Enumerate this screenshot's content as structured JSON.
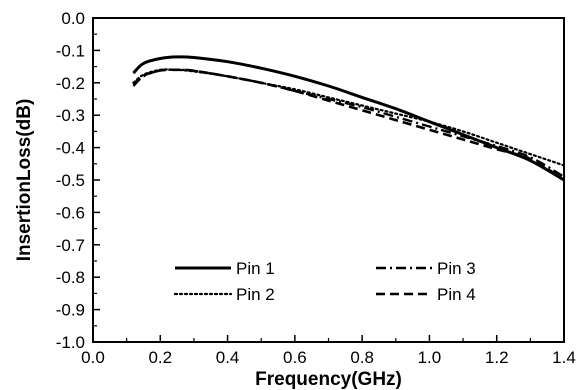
{
  "chart_data": {
    "type": "line",
    "xlabel": "Frequency(GHz)",
    "ylabel": "InsertionLoss(dB)",
    "xlim": [
      0.0,
      1.4
    ],
    "ylim": [
      -1.0,
      0.0
    ],
    "x_ticks": [
      0.0,
      0.2,
      0.4,
      0.6,
      0.8,
      1.0,
      1.2,
      1.4
    ],
    "x_tick_labels": [
      "0.0",
      "0.2",
      "0.4",
      "0.6",
      "0.8",
      "1.0",
      "1.2",
      "1.4"
    ],
    "y_ticks": [
      0.0,
      -0.1,
      -0.2,
      -0.3,
      -0.4,
      -0.5,
      -0.6,
      -0.7,
      -0.8,
      -0.9,
      -1.0
    ],
    "y_tick_labels": [
      "0.0",
      "-0.1",
      "-0.2",
      "-0.3",
      "-0.4",
      "-0.5",
      "-0.6",
      "-0.7",
      "-0.8",
      "-0.9",
      "-1.0"
    ],
    "grid": false,
    "legend_position": "lower-center",
    "series": [
      {
        "name": "Pin 1",
        "style": "solid",
        "color": "#000000",
        "x": [
          0.12,
          0.15,
          0.2,
          0.25,
          0.3,
          0.4,
          0.5,
          0.6,
          0.7,
          0.8,
          0.9,
          1.0,
          1.1,
          1.2,
          1.3,
          1.4
        ],
        "y": [
          -0.17,
          -0.14,
          -0.125,
          -0.12,
          -0.122,
          -0.135,
          -0.155,
          -0.18,
          -0.21,
          -0.245,
          -0.28,
          -0.32,
          -0.36,
          -0.4,
          -0.44,
          -0.5
        ]
      },
      {
        "name": "Pin 2",
        "style": "dotted",
        "color": "#000000",
        "x": [
          0.12,
          0.15,
          0.2,
          0.25,
          0.3,
          0.4,
          0.5,
          0.6,
          0.7,
          0.8,
          0.9,
          1.0,
          1.1,
          1.2,
          1.3,
          1.4
        ],
        "y": [
          -0.2,
          -0.175,
          -0.16,
          -0.16,
          -0.165,
          -0.18,
          -0.2,
          -0.22,
          -0.245,
          -0.27,
          -0.295,
          -0.32,
          -0.35,
          -0.385,
          -0.42,
          -0.455
        ]
      },
      {
        "name": "Pin 3",
        "style": "dashdot",
        "color": "#000000",
        "x": [
          0.12,
          0.15,
          0.2,
          0.25,
          0.3,
          0.4,
          0.5,
          0.6,
          0.7,
          0.8,
          0.9,
          1.0,
          1.1,
          1.2,
          1.3,
          1.4
        ],
        "y": [
          -0.21,
          -0.18,
          -0.162,
          -0.16,
          -0.163,
          -0.18,
          -0.2,
          -0.225,
          -0.25,
          -0.275,
          -0.305,
          -0.335,
          -0.365,
          -0.395,
          -0.43,
          -0.49
        ]
      },
      {
        "name": "Pin 4",
        "style": "dashed",
        "color": "#000000",
        "x": [
          0.12,
          0.15,
          0.2,
          0.25,
          0.3,
          0.4,
          0.5,
          0.6,
          0.7,
          0.8,
          0.9,
          1.0,
          1.1,
          1.2,
          1.3,
          1.4
        ],
        "y": [
          -0.205,
          -0.178,
          -0.162,
          -0.16,
          -0.163,
          -0.18,
          -0.2,
          -0.225,
          -0.255,
          -0.285,
          -0.315,
          -0.345,
          -0.375,
          -0.405,
          -0.435,
          -0.5
        ]
      }
    ]
  }
}
